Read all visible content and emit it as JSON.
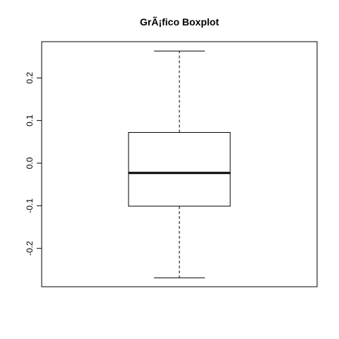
{
  "chart_data": {
    "type": "boxplot",
    "title": "GrÃ¡fico Boxplot",
    "xlabel": "",
    "ylabel": "",
    "ylim": [
      -0.29,
      0.285
    ],
    "yticks": [
      -0.2,
      -0.1,
      0.0,
      0.1,
      0.2
    ],
    "ytick_labels": [
      "-0.2",
      "-0.1",
      "0.0",
      "0.1",
      "0.2"
    ],
    "grid": false,
    "box": {
      "whisker_low": -0.269,
      "q1": -0.101,
      "median": -0.023,
      "q3": 0.072,
      "whisker_high": 0.263
    },
    "colors": {
      "stroke": "#000000",
      "fill": "#ffffff"
    }
  }
}
